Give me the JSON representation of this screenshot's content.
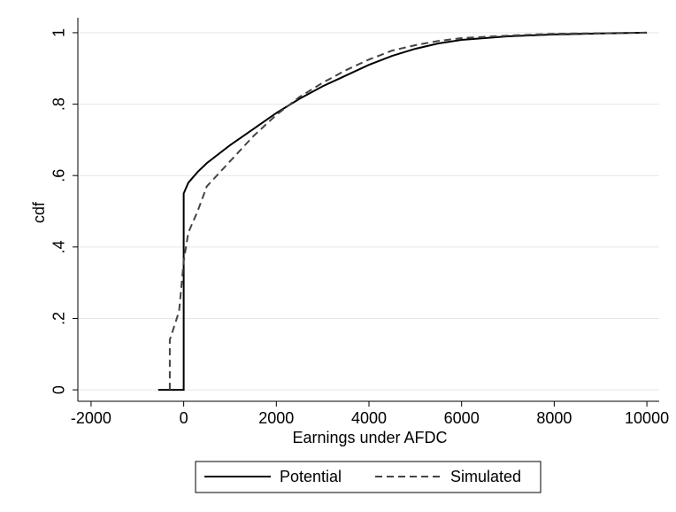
{
  "chart_data": {
    "type": "line",
    "xlabel": "Earnings under AFDC",
    "ylabel": "cdf",
    "xlim": [
      -2285,
      10266
    ],
    "ylim": [
      -0.032,
      1.042
    ],
    "xticks": [
      -2000,
      0,
      2000,
      4000,
      6000,
      8000,
      10000
    ],
    "yticks": [
      0,
      {
        "value": 0.2,
        "label": ".2"
      },
      {
        "value": 0.4,
        "label": ".4"
      },
      {
        "value": 0.6,
        "label": ".6"
      },
      {
        "value": 0.8,
        "label": ".8"
      },
      1
    ],
    "grid": true,
    "legend": "bottom",
    "series": [
      {
        "name": "Potential",
        "color": "#000000",
        "dash": "solid",
        "x": [
          -550,
          0,
          0,
          100,
          300,
          500,
          1000,
          1500,
          2000,
          2500,
          3000,
          3500,
          4000,
          4500,
          5000,
          5500,
          6000,
          7000,
          8000,
          9000,
          10000
        ],
        "values": [
          0,
          0,
          0.55,
          0.58,
          0.61,
          0.635,
          0.685,
          0.73,
          0.775,
          0.815,
          0.85,
          0.88,
          0.91,
          0.935,
          0.955,
          0.97,
          0.98,
          0.99,
          0.995,
          0.998,
          1
        ]
      },
      {
        "name": "Simulated",
        "color": "#444444",
        "dash": "dashed",
        "x": [
          -300,
          -300,
          -100,
          0,
          100,
          300,
          500,
          1000,
          1500,
          2000,
          2500,
          3000,
          3500,
          4000,
          4500,
          5000,
          5500,
          6000,
          7000,
          8000,
          10000
        ],
        "values": [
          0,
          0.14,
          0.22,
          0.36,
          0.44,
          0.5,
          0.57,
          0.64,
          0.71,
          0.77,
          0.82,
          0.86,
          0.895,
          0.925,
          0.95,
          0.965,
          0.977,
          0.985,
          0.992,
          0.997,
          1
        ]
      }
    ]
  }
}
